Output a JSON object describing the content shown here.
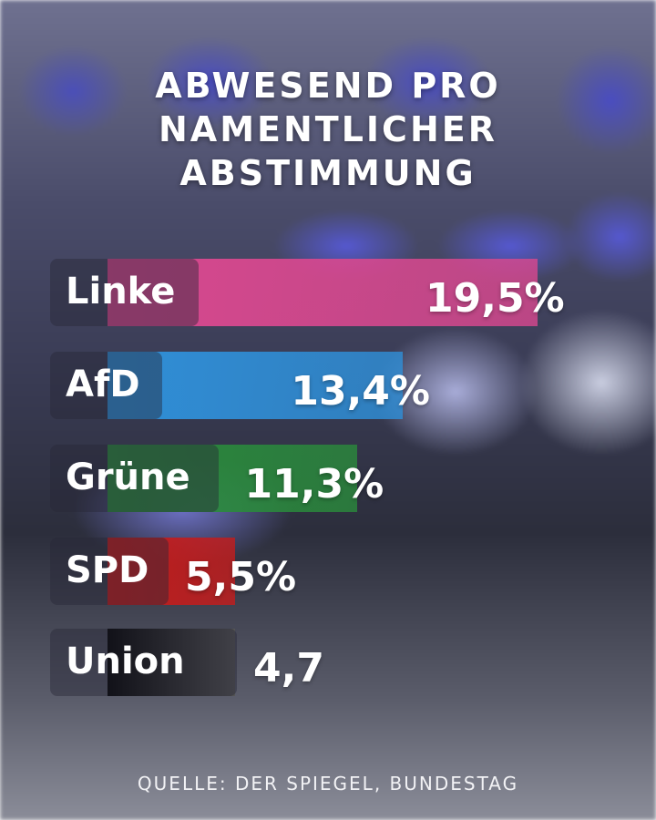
{
  "title_lines": [
    "ABWESEND PRO",
    "NAMENTLICHER",
    "ABSTIMMUNG"
  ],
  "source": "QUELLE: DER SPIEGEL, BUNDESTAG",
  "chart_data": {
    "type": "bar",
    "orientation": "horizontal",
    "title": "ABWESEND PRO NAMENTLICHER ABSTIMMUNG",
    "categories": [
      "Linke",
      "AfD",
      "Grüne",
      "SPD",
      "Union"
    ],
    "values": [
      19.5,
      13.4,
      11.3,
      5.5,
      4.7
    ],
    "value_labels": [
      "19,5%",
      "13,4%",
      "11,3%",
      "5,5%",
      "4,7"
    ],
    "colors": [
      "#d9488f",
      "#2f8fd8",
      "#2a8a3c",
      "#c41c1c",
      "#111111"
    ],
    "unit": "%"
  }
}
